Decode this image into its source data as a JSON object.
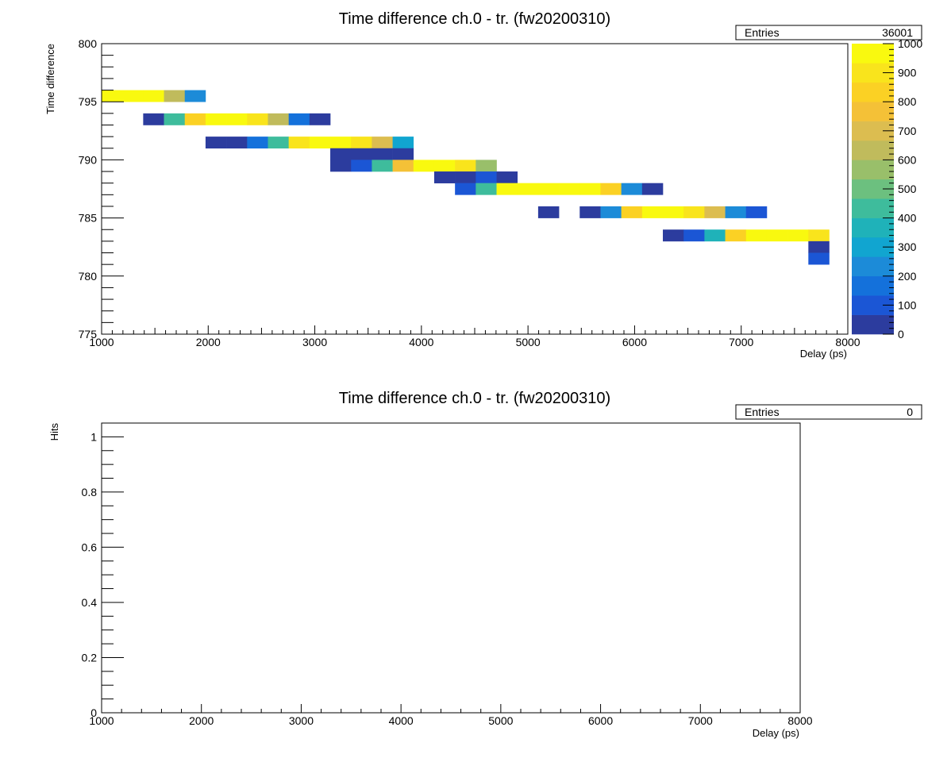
{
  "top_chart": {
    "title": "Time difference ch.0 - tr. (fw20200310)",
    "stats": {
      "label": "Entries",
      "value": "36001"
    },
    "xlabel": "Delay (ps)",
    "ylabel": "Time difference",
    "x_ticks": [
      "1000",
      "2000",
      "3000",
      "4000",
      "5000",
      "6000",
      "7000",
      "8000"
    ],
    "y_ticks": [
      "775",
      "780",
      "785",
      "790",
      "795",
      "800"
    ],
    "z_ticks": [
      "0",
      "100",
      "200",
      "300",
      "400",
      "500",
      "600",
      "700",
      "800",
      "900",
      "1000"
    ]
  },
  "bottom_chart": {
    "title": "Time difference ch.0 - tr. (fw20200310)",
    "stats": {
      "label": "Entries",
      "value": "0"
    },
    "xlabel": "Delay (ps)",
    "ylabel": "Hits",
    "x_ticks": [
      "1000",
      "2000",
      "3000",
      "4000",
      "5000",
      "6000",
      "7000",
      "8000"
    ],
    "y_ticks": [
      "0",
      "0.2",
      "0.4",
      "0.6",
      "0.8",
      "1"
    ]
  },
  "chart_data": [
    {
      "type": "heatmap",
      "title": "Time difference ch.0 - tr. (fw20200310)",
      "xlabel": "Delay (ps)",
      "ylabel": "Time difference",
      "xlim": [
        1000,
        8000
      ],
      "ylim": [
        775,
        800
      ],
      "zlim": [
        0,
        1000
      ],
      "x_bin_width": 195,
      "y_bin_width": 1,
      "palette": [
        "#2c3c9e",
        "#1b56d5",
        "#1471db",
        "#1c8bd8",
        "#11a5d0",
        "#1fb2b9",
        "#3ebc9c",
        "#6cc07f",
        "#99bf6a",
        "#c0bb5c",
        "#dcbd50",
        "#f4c137",
        "#fbd124",
        "#f9e41c",
        "#f9f90f"
      ],
      "entries": 36001,
      "cells": [
        {
          "x": 1000,
          "y": 795,
          "z": 1000
        },
        {
          "x": 1195,
          "y": 795,
          "z": 1000
        },
        {
          "x": 1390,
          "y": 795,
          "z": 1000
        },
        {
          "x": 1585,
          "y": 795,
          "z": 620
        },
        {
          "x": 1780,
          "y": 795,
          "z": 200
        },
        {
          "x": 1390,
          "y": 793,
          "z": 30
        },
        {
          "x": 1585,
          "y": 793,
          "z": 420
        },
        {
          "x": 1780,
          "y": 793,
          "z": 840
        },
        {
          "x": 1975,
          "y": 793,
          "z": 1000
        },
        {
          "x": 2170,
          "y": 793,
          "z": 1000
        },
        {
          "x": 2365,
          "y": 793,
          "z": 880
        },
        {
          "x": 2560,
          "y": 793,
          "z": 620
        },
        {
          "x": 2755,
          "y": 793,
          "z": 150
        },
        {
          "x": 2950,
          "y": 793,
          "z": 30
        },
        {
          "x": 1975,
          "y": 791,
          "z": 30
        },
        {
          "x": 2170,
          "y": 791,
          "z": 30
        },
        {
          "x": 2365,
          "y": 791,
          "z": 150
        },
        {
          "x": 2560,
          "y": 791,
          "z": 420
        },
        {
          "x": 2755,
          "y": 791,
          "z": 880
        },
        {
          "x": 2950,
          "y": 791,
          "z": 1000
        },
        {
          "x": 3145,
          "y": 791,
          "z": 1000
        },
        {
          "x": 3340,
          "y": 791,
          "z": 880
        },
        {
          "x": 3535,
          "y": 791,
          "z": 700
        },
        {
          "x": 3730,
          "y": 791,
          "z": 320
        },
        {
          "x": 3145,
          "y": 790,
          "z": 30
        },
        {
          "x": 3340,
          "y": 790,
          "z": 30
        },
        {
          "x": 3535,
          "y": 790,
          "z": 30
        },
        {
          "x": 3730,
          "y": 790,
          "z": 30
        },
        {
          "x": 3145,
          "y": 789,
          "z": 30
        },
        {
          "x": 3340,
          "y": 789,
          "z": 100
        },
        {
          "x": 3535,
          "y": 789,
          "z": 420
        },
        {
          "x": 3730,
          "y": 789,
          "z": 760
        },
        {
          "x": 3925,
          "y": 789,
          "z": 1000
        },
        {
          "x": 4120,
          "y": 789,
          "z": 1000
        },
        {
          "x": 4315,
          "y": 789,
          "z": 880
        },
        {
          "x": 4510,
          "y": 789,
          "z": 560
        },
        {
          "x": 4120,
          "y": 788,
          "z": 30
        },
        {
          "x": 4315,
          "y": 788,
          "z": 30
        },
        {
          "x": 4510,
          "y": 788,
          "z": 100
        },
        {
          "x": 4705,
          "y": 788,
          "z": 30
        },
        {
          "x": 4315,
          "y": 787,
          "z": 100
        },
        {
          "x": 4510,
          "y": 787,
          "z": 420
        },
        {
          "x": 4705,
          "y": 787,
          "z": 1000
        },
        {
          "x": 4900,
          "y": 787,
          "z": 1000
        },
        {
          "x": 5095,
          "y": 787,
          "z": 1000
        },
        {
          "x": 5290,
          "y": 787,
          "z": 1000
        },
        {
          "x": 5485,
          "y": 787,
          "z": 1000
        },
        {
          "x": 5680,
          "y": 787,
          "z": 800
        },
        {
          "x": 5875,
          "y": 787,
          "z": 250
        },
        {
          "x": 6070,
          "y": 787,
          "z": 30
        },
        {
          "x": 5095,
          "y": 785,
          "z": 30
        },
        {
          "x": 5485,
          "y": 785,
          "z": 30
        },
        {
          "x": 5680,
          "y": 785,
          "z": 250
        },
        {
          "x": 5875,
          "y": 785,
          "z": 800
        },
        {
          "x": 6070,
          "y": 785,
          "z": 1000
        },
        {
          "x": 6265,
          "y": 785,
          "z": 1000
        },
        {
          "x": 6460,
          "y": 785,
          "z": 880
        },
        {
          "x": 6655,
          "y": 785,
          "z": 720
        },
        {
          "x": 6850,
          "y": 785,
          "z": 250
        },
        {
          "x": 7045,
          "y": 785,
          "z": 100
        },
        {
          "x": 6265,
          "y": 783,
          "z": 30
        },
        {
          "x": 6460,
          "y": 783,
          "z": 100
        },
        {
          "x": 6655,
          "y": 783,
          "z": 350
        },
        {
          "x": 6850,
          "y": 783,
          "z": 800
        },
        {
          "x": 7045,
          "y": 783,
          "z": 1000
        },
        {
          "x": 7240,
          "y": 783,
          "z": 1000
        },
        {
          "x": 7435,
          "y": 783,
          "z": 1000
        },
        {
          "x": 7630,
          "y": 783,
          "z": 880
        },
        {
          "x": 7630,
          "y": 782,
          "z": 30
        },
        {
          "x": 7630,
          "y": 781,
          "z": 100
        }
      ]
    },
    {
      "type": "line",
      "title": "Time difference ch.0 - tr. (fw20200310)",
      "xlabel": "Delay (ps)",
      "ylabel": "Hits",
      "xlim": [
        1000,
        8000
      ],
      "ylim": [
        0,
        1.05
      ],
      "entries": 0,
      "series": []
    }
  ]
}
